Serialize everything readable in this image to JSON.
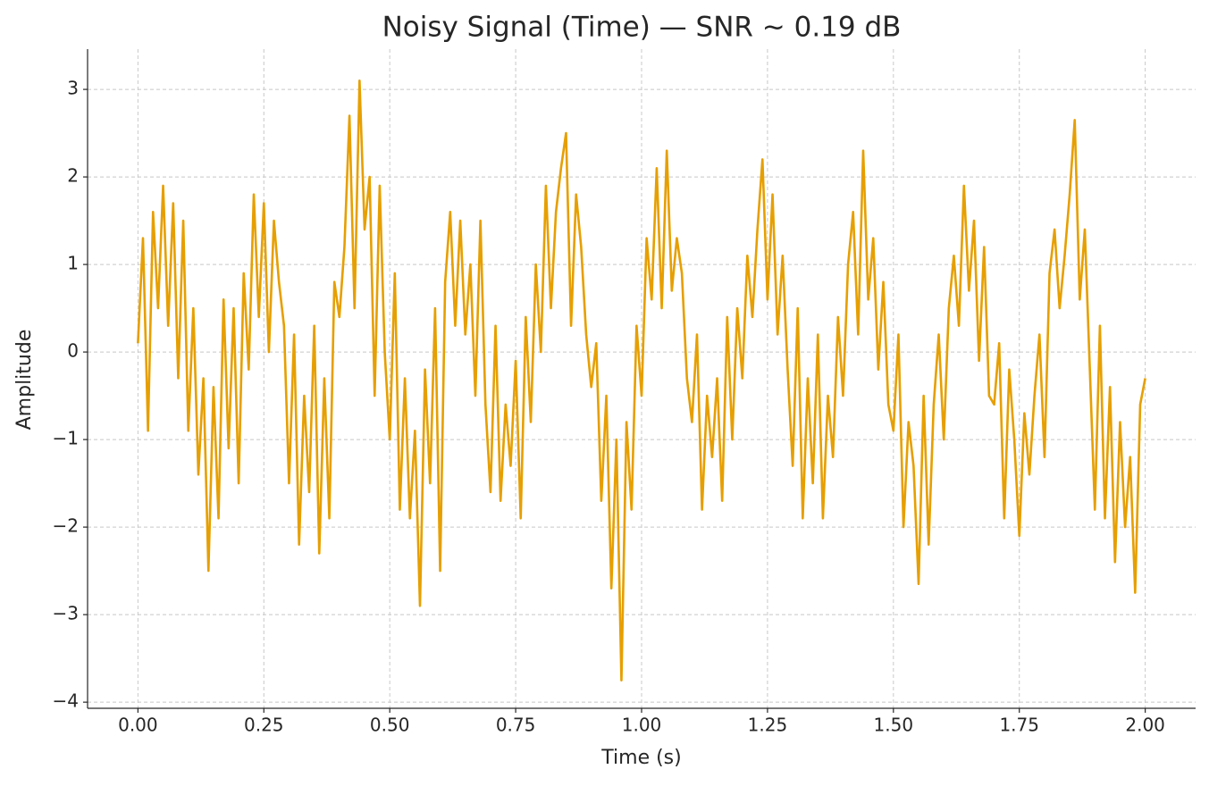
{
  "chart_data": {
    "type": "line",
    "title": "Noisy Signal (Time) — SNR ~ 0.19 dB",
    "xlabel": "Time (s)",
    "ylabel": "Amplitude",
    "color": "#e69f00",
    "grid": true,
    "xlim": [
      -0.1,
      2.1
    ],
    "ylim": [
      -4.07,
      3.46
    ],
    "xticks": [
      {
        "value": 0,
        "label": "0.00"
      },
      {
        "value": 0.25,
        "label": "0.25"
      },
      {
        "value": 0.5,
        "label": "0.50"
      },
      {
        "value": 0.75,
        "label": "0.75"
      },
      {
        "value": 1,
        "label": "1.00"
      },
      {
        "value": 1.25,
        "label": "1.25"
      },
      {
        "value": 1.5,
        "label": "1.50"
      },
      {
        "value": 1.75,
        "label": "1.75"
      },
      {
        "value": 2,
        "label": "2.00"
      }
    ],
    "yticks": [
      {
        "value": -4,
        "label": "−4"
      },
      {
        "value": -3,
        "label": "−3"
      },
      {
        "value": -2,
        "label": "−2"
      },
      {
        "value": -1,
        "label": "−1"
      },
      0,
      1,
      2,
      3
    ],
    "x": [
      0,
      0.01,
      0.02,
      0.03,
      0.04,
      0.05,
      0.06,
      0.07,
      0.08,
      0.09,
      0.1,
      0.11,
      0.12,
      0.13,
      0.14,
      0.15,
      0.16,
      0.17,
      0.18,
      0.19,
      0.2,
      0.21,
      0.22,
      0.23,
      0.24,
      0.25,
      0.26,
      0.27,
      0.28,
      0.29,
      0.3,
      0.31,
      0.32,
      0.33,
      0.34,
      0.35,
      0.36,
      0.37,
      0.38,
      0.39,
      0.4,
      0.41,
      0.42,
      0.43,
      0.44,
      0.45,
      0.46,
      0.47,
      0.48,
      0.49,
      0.5,
      0.51,
      0.52,
      0.53,
      0.54,
      0.55,
      0.56,
      0.57,
      0.58,
      0.59,
      0.6,
      0.61,
      0.62,
      0.63,
      0.64,
      0.65,
      0.66,
      0.67,
      0.68,
      0.69,
      0.7,
      0.71,
      0.72,
      0.73,
      0.74,
      0.75,
      0.76,
      0.77,
      0.78,
      0.79,
      0.8,
      0.81,
      0.82,
      0.83,
      0.84,
      0.85,
      0.86,
      0.87,
      0.88,
      0.89,
      0.9,
      0.91,
      0.92,
      0.93,
      0.94,
      0.95,
      0.96,
      0.97,
      0.98,
      0.99,
      1,
      1.01,
      1.02,
      1.03,
      1.04,
      1.05,
      1.06,
      1.07,
      1.08,
      1.09,
      1.1,
      1.11,
      1.12,
      1.13,
      1.14,
      1.15,
      1.16,
      1.17,
      1.18,
      1.19,
      1.2,
      1.21,
      1.22,
      1.23,
      1.24,
      1.25,
      1.26,
      1.27,
      1.28,
      1.29,
      1.3,
      1.31,
      1.32,
      1.33,
      1.34,
      1.35,
      1.36,
      1.37,
      1.38,
      1.39,
      1.4,
      1.41,
      1.42,
      1.43,
      1.44,
      1.45,
      1.46,
      1.47,
      1.48,
      1.49,
      1.5,
      1.51,
      1.52,
      1.53,
      1.54,
      1.55,
      1.56,
      1.57,
      1.58,
      1.59,
      1.6,
      1.61,
      1.62,
      1.63,
      1.64,
      1.65,
      1.66,
      1.67,
      1.68,
      1.69,
      1.7,
      1.71,
      1.72,
      1.73,
      1.74,
      1.75,
      1.76,
      1.77,
      1.78,
      1.79,
      1.8,
      1.81,
      1.82,
      1.83,
      1.84,
      1.85,
      1.86,
      1.87,
      1.88,
      1.89,
      1.9,
      1.91,
      1.92,
      1.93,
      1.94,
      1.95,
      1.96,
      1.97,
      1.98,
      1.99,
      2
    ],
    "values": [
      0.1,
      1.3,
      -0.9,
      1.6,
      0.5,
      1.9,
      0.3,
      1.7,
      -0.3,
      1.5,
      -0.9,
      0.5,
      -1.4,
      -0.3,
      -2.5,
      -0.4,
      -1.9,
      0.6,
      -1.1,
      0.5,
      -1.5,
      0.9,
      -0.2,
      1.8,
      0.4,
      1.7,
      0.0,
      1.5,
      0.8,
      0.3,
      -1.5,
      0.2,
      -2.2,
      -0.5,
      -1.6,
      0.3,
      -2.3,
      -0.3,
      -1.9,
      0.8,
      0.4,
      1.2,
      2.7,
      0.5,
      3.1,
      1.4,
      2.0,
      -0.5,
      1.9,
      0.0,
      -1.0,
      0.9,
      -1.8,
      -0.3,
      -1.9,
      -0.9,
      -2.9,
      -0.2,
      -1.5,
      0.5,
      -2.5,
      0.8,
      1.6,
      0.3,
      1.5,
      0.2,
      1.0,
      -0.5,
      1.5,
      -0.6,
      -1.6,
      0.3,
      -1.7,
      -0.6,
      -1.3,
      -0.1,
      -1.9,
      0.4,
      -0.8,
      1.0,
      0.0,
      1.9,
      0.5,
      1.6,
      2.1,
      2.5,
      0.3,
      1.8,
      1.2,
      0.2,
      -0.4,
      0.1,
      -1.7,
      -0.5,
      -2.7,
      -1.0,
      -3.75,
      -0.8,
      -1.8,
      0.3,
      -0.5,
      1.3,
      0.6,
      2.1,
      0.5,
      2.3,
      0.7,
      1.3,
      0.9,
      -0.3,
      -0.8,
      0.2,
      -1.8,
      -0.5,
      -1.2,
      -0.3,
      -1.7,
      0.4,
      -1.0,
      0.5,
      -0.3,
      1.1,
      0.4,
      1.4,
      2.2,
      0.6,
      1.8,
      0.2,
      1.1,
      -0.2,
      -1.3,
      0.5,
      -1.9,
      -0.3,
      -1.5,
      0.2,
      -1.9,
      -0.5,
      -1.2,
      0.4,
      -0.5,
      1.0,
      1.6,
      0.2,
      2.3,
      0.6,
      1.3,
      -0.2,
      0.8,
      -0.6,
      -0.9,
      0.2,
      -2.0,
      -0.8,
      -1.3,
      -2.65,
      -0.5,
      -2.2,
      -0.6,
      0.2,
      -1.0,
      0.5,
      1.1,
      0.3,
      1.9,
      0.7,
      1.5,
      -0.1,
      1.2,
      -0.5,
      -0.6,
      0.1,
      -1.9,
      -0.2,
      -1.0,
      -2.1,
      -0.7,
      -1.4,
      -0.5,
      0.2,
      -1.2,
      0.9,
      1.4,
      0.5,
      1.1,
      1.8,
      2.65,
      0.6,
      1.4,
      -0.2,
      -1.8,
      0.3,
      -1.9,
      -0.4,
      -2.4,
      -0.8,
      -2.0,
      -1.2,
      -2.75,
      -0.6,
      -0.3
    ]
  }
}
